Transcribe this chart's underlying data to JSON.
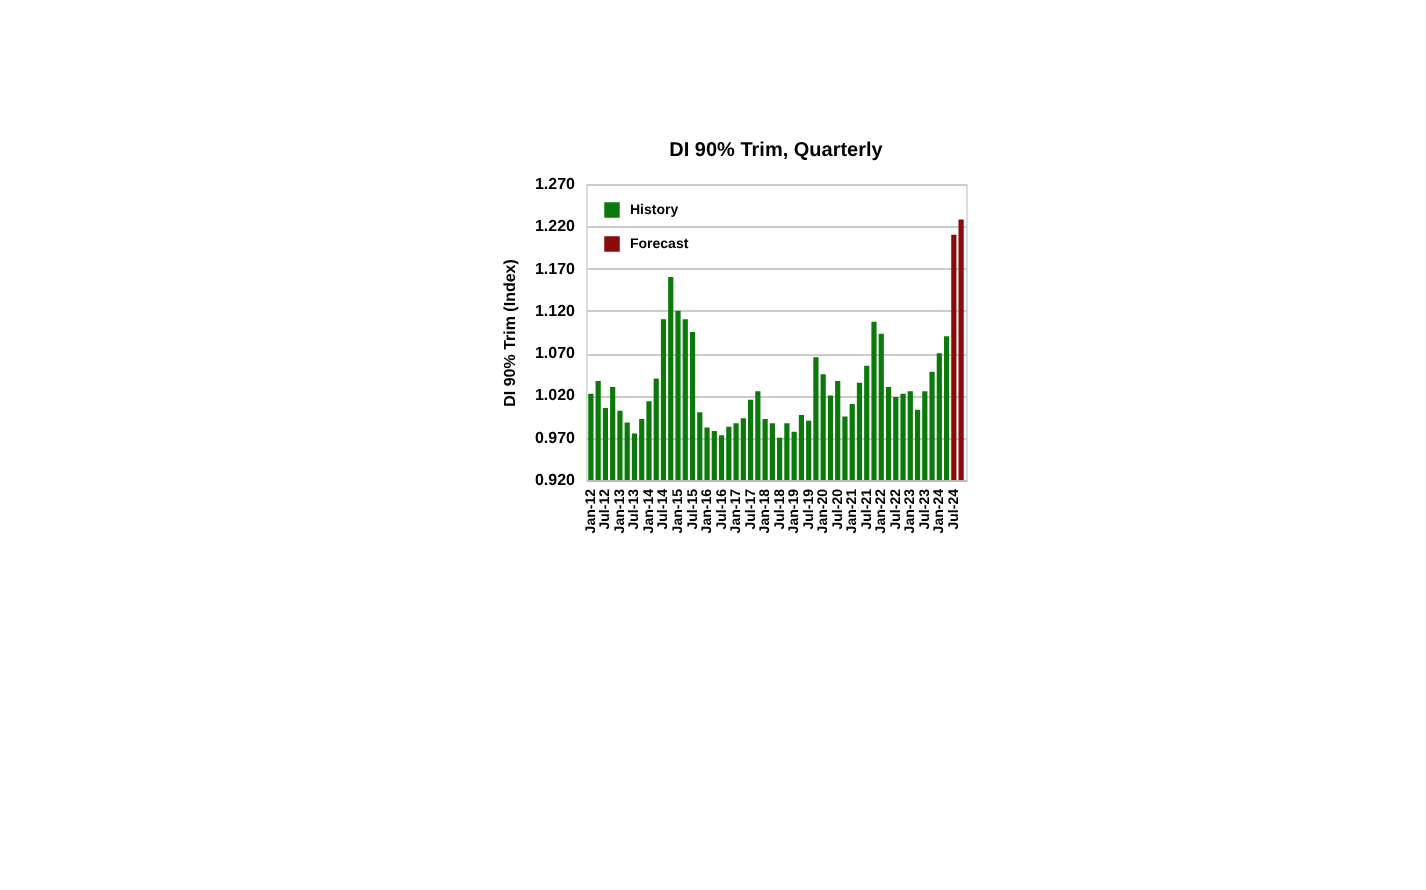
{
  "chart_data": {
    "type": "bar",
    "title": "DI 90% Trim, Quarterly",
    "ylabel": "DI 90% Trim (Index)",
    "categories": [
      "Jan-12",
      null,
      "Jul-12",
      null,
      "Jan-13",
      null,
      "Jul-13",
      null,
      "Jan-14",
      null,
      "Jul-14",
      null,
      "Jan-15",
      null,
      "Jul-15",
      null,
      "Jan-16",
      null,
      "Jul-16",
      null,
      "Jan-17",
      null,
      "Jul-17",
      null,
      "Jan-18",
      null,
      "Jul-18",
      null,
      "Jan-19",
      null,
      "Jul-19",
      null,
      "Jan-20",
      null,
      "Jul-20",
      null,
      "Jan-21",
      null,
      "Jul-21",
      null,
      "Jan-22",
      null,
      "Jul-22",
      null,
      "Jan-23",
      null,
      "Jul-23",
      null,
      "Jan-24",
      null,
      "Jul-24",
      null
    ],
    "series": [
      {
        "name": "History",
        "color": "#0b7a0b",
        "values": [
          1.022,
          1.037,
          1.005,
          1.03,
          1.002,
          0.988,
          0.975,
          0.992,
          1.013,
          1.04,
          1.11,
          1.16,
          1.12,
          1.11,
          1.095,
          1.0,
          0.982,
          0.978,
          0.973,
          0.983,
          0.987,
          0.993,
          1.015,
          1.025,
          0.992,
          0.987,
          0.97,
          0.987,
          0.977,
          0.997,
          0.99,
          1.065,
          1.045,
          1.02,
          1.037,
          0.995,
          1.01,
          1.035,
          1.055,
          1.107,
          1.093,
          1.03,
          1.018,
          1.022,
          1.025,
          1.003,
          1.025,
          1.048,
          1.07,
          1.09,
          null,
          null
        ]
      },
      {
        "name": "Forecast",
        "color": "#8b0a0a",
        "values": [
          null,
          null,
          null,
          null,
          null,
          null,
          null,
          null,
          null,
          null,
          null,
          null,
          null,
          null,
          null,
          null,
          null,
          null,
          null,
          null,
          null,
          null,
          null,
          null,
          null,
          null,
          null,
          null,
          null,
          null,
          null,
          null,
          null,
          null,
          null,
          null,
          null,
          null,
          null,
          null,
          null,
          null,
          null,
          null,
          null,
          null,
          null,
          null,
          null,
          null,
          1.21,
          1.228
        ]
      }
    ],
    "ylim": [
      0.92,
      1.27
    ],
    "yticks": [
      {
        "value": 0.92,
        "label": "0.920"
      },
      {
        "value": 0.97,
        "label": "0.970"
      },
      {
        "value": 1.02,
        "label": "1.020"
      },
      {
        "value": 1.07,
        "label": "1.070"
      },
      {
        "value": 1.12,
        "label": "1.120"
      },
      {
        "value": 1.17,
        "label": "1.170"
      },
      {
        "value": 1.22,
        "label": "1.220"
      },
      {
        "value": 1.27,
        "label": "1.270"
      }
    ],
    "grid": "y",
    "legend": "top left"
  }
}
